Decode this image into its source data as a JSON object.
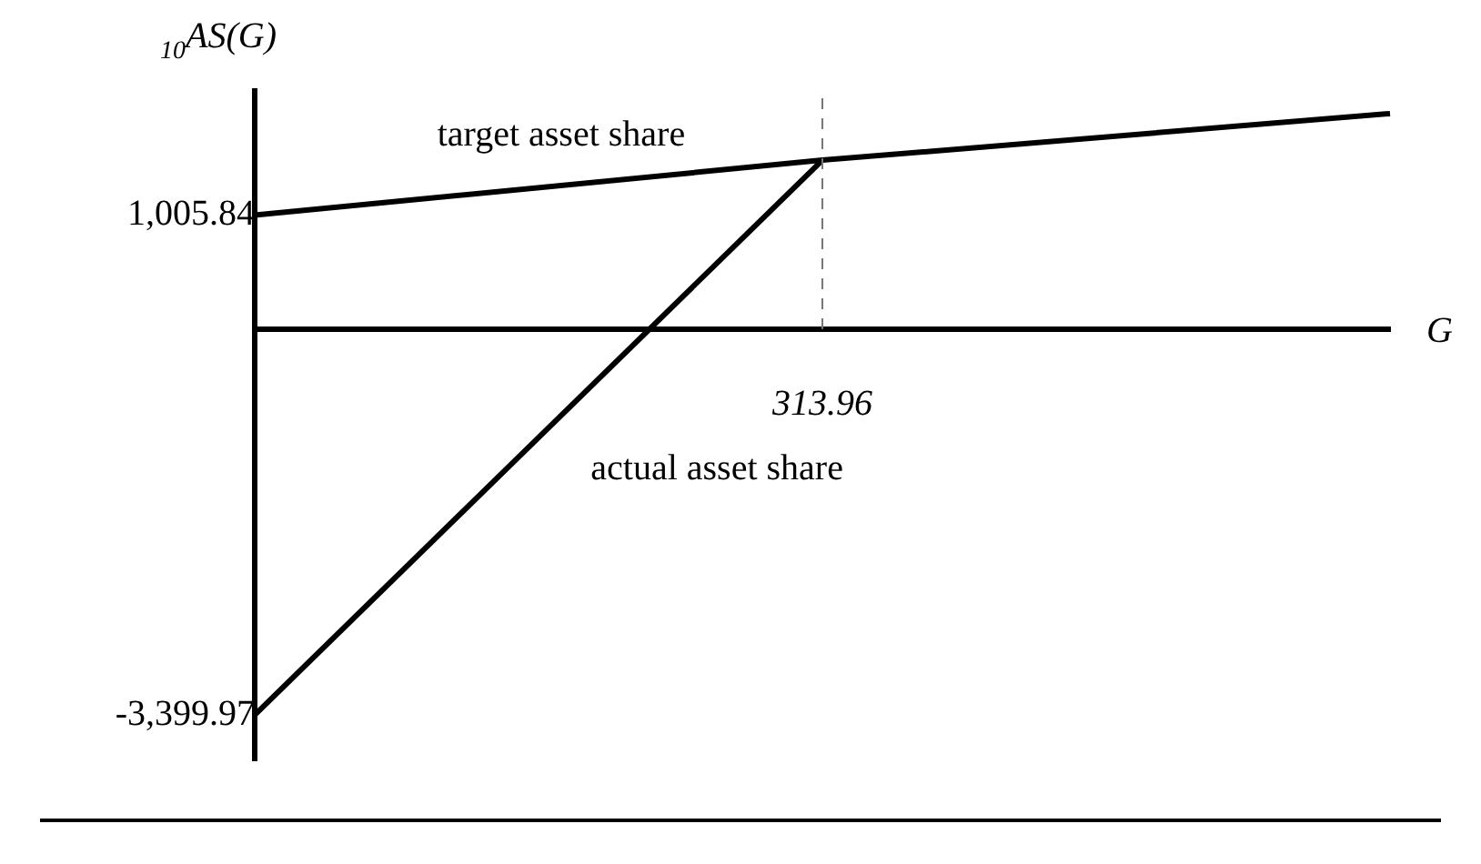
{
  "chart_data": {
    "type": "line",
    "ylabel": "$_{10}$AS(G)",
    "xlabel": "G",
    "categories": [
      null,
      "313.96",
      null
    ],
    "ylim": [
      -3800,
      2100
    ],
    "yticks": [
      {
        "value": 1005.84,
        "label": "1,005.84"
      },
      {
        "value": -3399.97,
        "label": "-3,399.97"
      }
    ],
    "series": [
      {
        "name": "target asset share",
        "color": "#000000",
        "values": [
          1005.84,
          1490,
          1900
        ]
      },
      {
        "name": "actual asset share",
        "color": "#000000",
        "values": [
          -3399.97,
          1490,
          null
        ]
      }
    ],
    "ref_lines": [
      {
        "axis": "x",
        "value": "313.96",
        "color": "#777777",
        "line_style": "dashed"
      }
    ],
    "grid": false,
    "legend": false,
    "marker": "none",
    "line_style": "solid"
  }
}
